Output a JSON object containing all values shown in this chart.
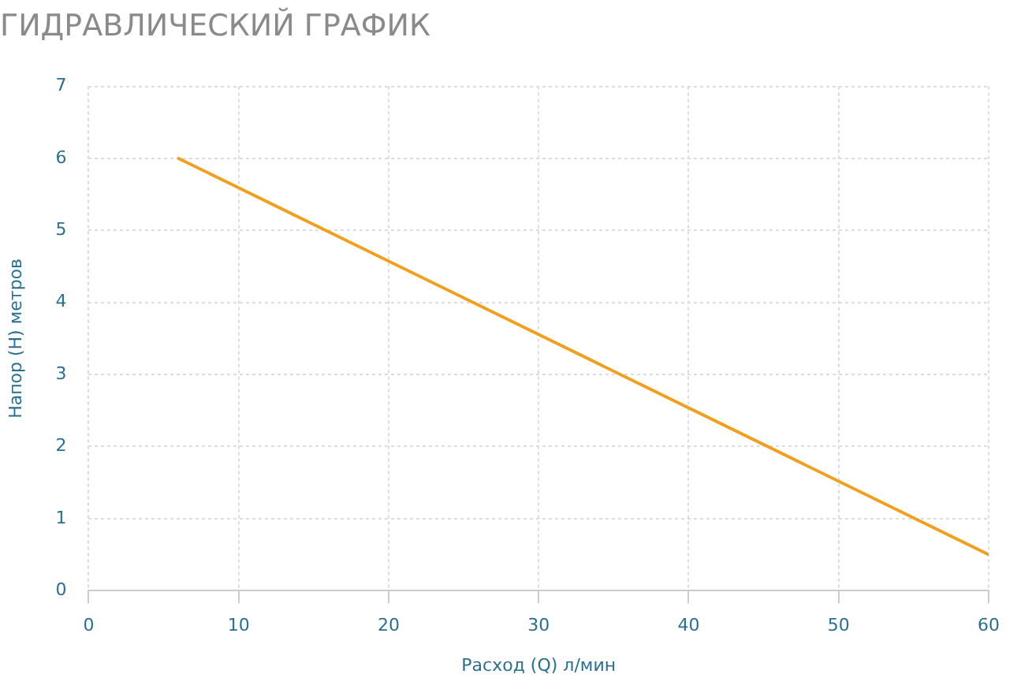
{
  "chart_data": {
    "type": "line",
    "title": "ГИДРАВЛИЧЕСКИЙ ГРАФИК",
    "xlabel": "Расход (Q) л/мин",
    "ylabel": "Напор (H) метров",
    "x": [
      6,
      60
    ],
    "series": [
      {
        "color": "#f0a020",
        "values": [
          6,
          0.5
        ]
      }
    ],
    "xlim": [
      0,
      60
    ],
    "xticks": [
      0,
      10,
      20,
      30,
      40,
      50,
      60
    ],
    "ylim": [
      0,
      7
    ],
    "yticks": [
      0,
      1,
      2,
      3,
      4,
      5,
      6,
      7
    ],
    "grid": true,
    "legend": false,
    "marker": "none",
    "line_style": "solid"
  }
}
